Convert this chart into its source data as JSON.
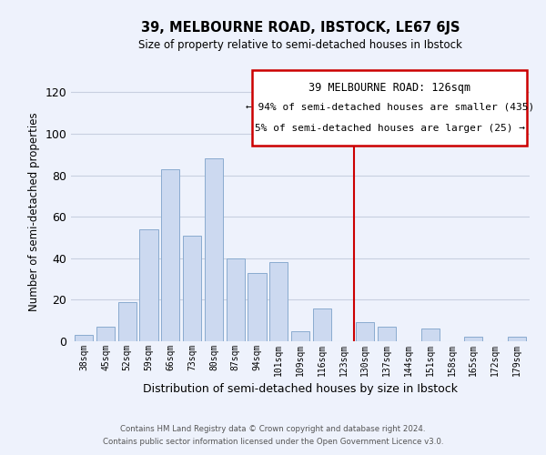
{
  "title": "39, MELBOURNE ROAD, IBSTOCK, LE67 6JS",
  "subtitle": "Size of property relative to semi-detached houses in Ibstock",
  "xlabel": "Distribution of semi-detached houses by size in Ibstock",
  "ylabel": "Number of semi-detached properties",
  "categories": [
    "38sqm",
    "45sqm",
    "52sqm",
    "59sqm",
    "66sqm",
    "73sqm",
    "80sqm",
    "87sqm",
    "94sqm",
    "101sqm",
    "109sqm",
    "116sqm",
    "123sqm",
    "130sqm",
    "137sqm",
    "144sqm",
    "151sqm",
    "158sqm",
    "165sqm",
    "172sqm",
    "179sqm"
  ],
  "values": [
    3,
    7,
    19,
    54,
    83,
    51,
    88,
    40,
    33,
    38,
    5,
    16,
    0,
    9,
    7,
    0,
    6,
    0,
    2,
    0,
    2
  ],
  "bar_color": "#ccd9f0",
  "bar_edge_color": "#8aabcf",
  "highlight_line_color": "#cc0000",
  "highlight_bar_index": 13,
  "ylim": [
    0,
    125
  ],
  "yticks": [
    0,
    20,
    40,
    60,
    80,
    100,
    120
  ],
  "box_text_line1": "39 MELBOURNE ROAD: 126sqm",
  "box_text_line2": "← 94% of semi-detached houses are smaller (435)",
  "box_text_line3": "5% of semi-detached houses are larger (25) →",
  "footnote1": "Contains HM Land Registry data © Crown copyright and database right 2024.",
  "footnote2": "Contains public sector information licensed under the Open Government Licence v3.0.",
  "background_color": "#eef2fc",
  "grid_color": "#c8cfe0"
}
